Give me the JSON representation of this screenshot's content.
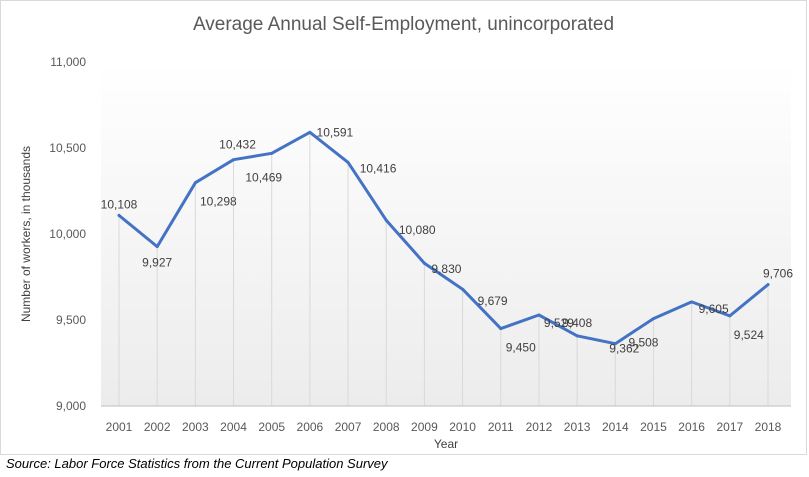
{
  "chart_data": {
    "type": "line",
    "title": "Average Annual Self-Employment, unincorporated",
    "xlabel": "Year",
    "ylabel": "Number of workers, in thousands",
    "ylim": [
      9000,
      11000
    ],
    "yticks": [
      "9,000",
      "9,500",
      "10,000",
      "10,500",
      "11,000"
    ],
    "categories": [
      "2001",
      "2002",
      "2003",
      "2004",
      "2005",
      "2006",
      "2007",
      "2008",
      "2009",
      "2010",
      "2011",
      "2012",
      "2013",
      "2014",
      "2015",
      "2016",
      "2017",
      "2018"
    ],
    "series": [
      {
        "values": [
          10108,
          9927,
          10298,
          10432,
          10469,
          10591,
          10416,
          10080,
          9830,
          9679,
          9450,
          9529,
          9408,
          9362,
          9508,
          9605,
          9524,
          9706
        ],
        "labels": [
          "10,108",
          "9,927",
          "10,298",
          "10,432",
          "10,469",
          "10,591",
          "10,416",
          "10,080",
          "9,830",
          "9,679",
          "9,450",
          "9,529",
          "9,408",
          "9,362",
          "9,508",
          "9,605",
          "9,524",
          "9,706"
        ],
        "color": "#4472c4"
      }
    ],
    "grid": false,
    "legend": "none"
  },
  "source": "Source: Labor Force Statistics from the Current Population Survey",
  "colors": {
    "line": "#4472c4",
    "drop_lines": "#d9d9d9",
    "plot_gradient_top": "#ffffff",
    "plot_gradient_bottom": "#ececec"
  }
}
